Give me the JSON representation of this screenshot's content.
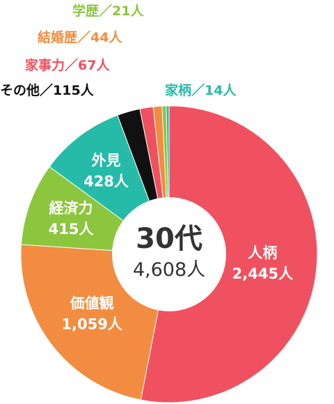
{
  "chart_data": {
    "type": "pie",
    "title": "30代",
    "subtitle": "4,608人",
    "total": 4608,
    "start_angle_deg": 0,
    "direction": "clockwise",
    "slices": [
      {
        "label": "人柄",
        "value": 2445,
        "value_text": "2,445人",
        "color": "#f05160",
        "placement": "inside"
      },
      {
        "label": "価値観",
        "value": 1059,
        "value_text": "1,059人",
        "color": "#f28c40",
        "placement": "inside"
      },
      {
        "label": "経済力",
        "value": 415,
        "value_text": "415人",
        "color": "#8cc63f",
        "placement": "inside"
      },
      {
        "label": "外見",
        "value": 428,
        "value_text": "428人",
        "color": "#26bba9",
        "placement": "inside"
      },
      {
        "label": "その他",
        "value": 115,
        "value_text": "115人",
        "color": "#111111",
        "placement": "outside",
        "callout": "その他／115人"
      },
      {
        "label": "家事力",
        "value": 67,
        "value_text": "67人",
        "color": "#f05160",
        "placement": "outside",
        "callout": "家事力／67人"
      },
      {
        "label": "結婚歴",
        "value": 44,
        "value_text": "44人",
        "color": "#f28c40",
        "placement": "outside",
        "callout": "結婚歴／44人"
      },
      {
        "label": "学歴",
        "value": 21,
        "value_text": "21人",
        "color": "#8cc63f",
        "placement": "outside",
        "callout": "学歴／21人"
      },
      {
        "label": "家柄",
        "value": 14,
        "value_text": "14人",
        "color": "#26bba9",
        "placement": "outside",
        "callout": "家柄／14人"
      }
    ],
    "separator_color": "#ffffff",
    "center_fill": "#ffffff",
    "center_text_color": "#333333",
    "inside_label_color": "#ffffff"
  }
}
